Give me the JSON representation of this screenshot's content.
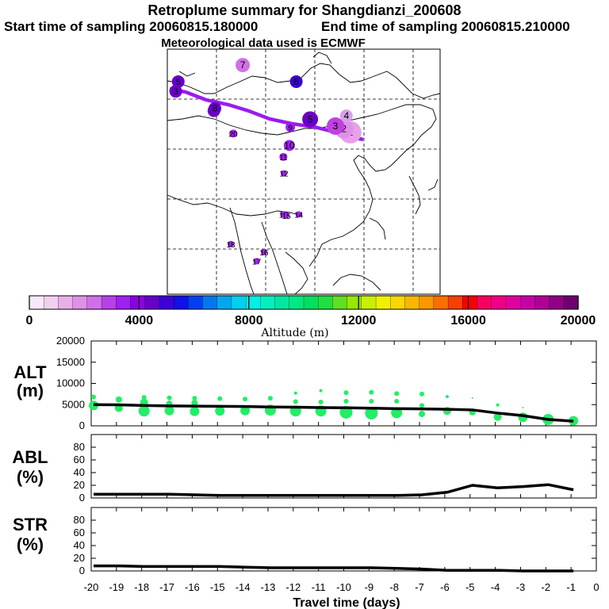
{
  "header": {
    "title": "Retroplume summary for Shangdianzi_200608",
    "start": "Start time of sampling 20060815.180000",
    "end": "End time of sampling 20060815.210000",
    "met": "Meteorological data used is ECMWF"
  },
  "colorbar": {
    "label": "Altitude  (m)",
    "ticks": [
      "0",
      "4000",
      "8000",
      "12000",
      "16000",
      "20000"
    ],
    "colors": [
      "#f8e8f8",
      "#f0d0f0",
      "#e8b0e8",
      "#e090e8",
      "#d070e8",
      "#b840e8",
      "#a020f0",
      "#8c00e0",
      "#6a00c8",
      "#3c00d8",
      "#1010e8",
      "#0040f0",
      "#0078f0",
      "#00a8f0",
      "#00d0f0",
      "#00f0e8",
      "#00f0c0",
      "#00e8a0",
      "#00e880",
      "#00e060",
      "#20e040",
      "#60e020",
      "#98e800",
      "#c8f000",
      "#f0f000",
      "#f8d800",
      "#f8b800",
      "#f89800",
      "#f87000",
      "#f84000",
      "#f80000",
      "#f80060",
      "#f00088",
      "#e000a0",
      "#c800a8",
      "#b00098",
      "#900088",
      "#700070"
    ]
  },
  "map": {
    "points": [
      {
        "label": "1",
        "lon": 116.9,
        "lat": 40.4,
        "size": 14,
        "color": "#e8a0e8"
      },
      {
        "label": "2",
        "lon": 115.6,
        "lat": 41.0,
        "size": 12,
        "color": "#e090e8"
      },
      {
        "label": "3",
        "lon": 113.9,
        "lat": 41.5,
        "size": 11,
        "color": "#c040e0"
      },
      {
        "label": "4",
        "lon": 116.1,
        "lat": 43.3,
        "size": 8,
        "color": "#d8a0e8"
      },
      {
        "label": "5",
        "lon": 108.8,
        "lat": 42.7,
        "size": 10,
        "color": "#6a00c8"
      },
      {
        "label": "6",
        "lon": 106.0,
        "lat": 49.3,
        "size": 8,
        "color": "#3c00d8"
      },
      {
        "label": "7",
        "lon": 95.2,
        "lat": 52.2,
        "size": 9,
        "color": "#d070e8"
      },
      {
        "label": "8",
        "lon": 89.6,
        "lat": 44.6,
        "size": 8,
        "color": "#6a00c8"
      },
      {
        "label": "9",
        "lon": 104.8,
        "lat": 41.3,
        "size": 6,
        "color": "#a020f0"
      },
      {
        "label": "10",
        "lon": 104.6,
        "lat": 38.1,
        "size": 7,
        "color": "#a020f0"
      },
      {
        "label": "11",
        "lon": 103.4,
        "lat": 36.1,
        "size": 5,
        "color": "#a020f0"
      },
      {
        "label": "12",
        "lon": 103.5,
        "lat": 33.2,
        "size": 4,
        "color": "#a020f0"
      },
      {
        "label": "13",
        "lon": 103.4,
        "lat": 26.0,
        "size": 4,
        "color": "#a020f0"
      },
      {
        "label": "14",
        "lon": 106.5,
        "lat": 26.0,
        "size": 4,
        "color": "#a020f0"
      },
      {
        "label": "15",
        "lon": 104.0,
        "lat": 25.8,
        "size": 4,
        "color": "#a020f0"
      },
      {
        "label": "16",
        "lon": 99.5,
        "lat": 19.4,
        "size": 4,
        "color": "#a020f0"
      },
      {
        "label": "17",
        "lon": 98.0,
        "lat": 17.8,
        "size": 4,
        "color": "#a020f0"
      },
      {
        "label": "18",
        "lon": 92.8,
        "lat": 20.8,
        "size": 4,
        "color": "#a020f0"
      },
      {
        "label": "20",
        "lon": 93.3,
        "lat": 40.2,
        "size": 5,
        "color": "#a020f0"
      }
    ],
    "fix_points": [
      {
        "label": "5",
        "lon": 82.2,
        "lat": 49.3
      },
      {
        "label": "8",
        "lon": 89.4,
        "lat": 44.2
      },
      {
        "label": "3",
        "lon": 81.7,
        "lat": 47.6
      }
    ]
  },
  "chart_data": [
    {
      "type": "scatter+line",
      "title": "ALT (m)",
      "x": [
        -20,
        -19,
        -18,
        -17,
        -16,
        -15,
        -14,
        -13,
        -12,
        -11,
        -10,
        -9,
        -8,
        -7,
        -6,
        -5,
        -4,
        -3,
        -2,
        -1
      ],
      "line": [
        5000,
        4950,
        4800,
        4700,
        4650,
        4600,
        4550,
        4450,
        4400,
        4300,
        4250,
        4150,
        4050,
        4000,
        3900,
        3750,
        3000,
        2400,
        1500,
        1100
      ],
      "xlim": [
        -20,
        0
      ],
      "ylim": [
        0,
        20000
      ],
      "yticks": [
        0,
        5000,
        10000,
        15000,
        20000
      ],
      "dots": [
        {
          "x": -20,
          "y": 4800,
          "r": 6
        },
        {
          "x": -20,
          "y": 6800,
          "r": 3
        },
        {
          "x": -19,
          "y": 4200,
          "r": 5
        },
        {
          "x": -19,
          "y": 6200,
          "r": 4
        },
        {
          "x": -18,
          "y": 3500,
          "r": 7
        },
        {
          "x": -18,
          "y": 5500,
          "r": 5
        },
        {
          "x": -18,
          "y": 6700,
          "r": 3
        },
        {
          "x": -17,
          "y": 3600,
          "r": 6
        },
        {
          "x": -17,
          "y": 5200,
          "r": 4
        },
        {
          "x": -17,
          "y": 6600,
          "r": 3
        },
        {
          "x": -16,
          "y": 3400,
          "r": 6
        },
        {
          "x": -16,
          "y": 5400,
          "r": 4
        },
        {
          "x": -16,
          "y": 6500,
          "r": 3
        },
        {
          "x": -15,
          "y": 3500,
          "r": 6
        },
        {
          "x": -15,
          "y": 6400,
          "r": 3
        },
        {
          "x": -14,
          "y": 3600,
          "r": 6
        },
        {
          "x": -14,
          "y": 6300,
          "r": 3
        },
        {
          "x": -13,
          "y": 3700,
          "r": 7
        },
        {
          "x": -13,
          "y": 6500,
          "r": 3
        },
        {
          "x": -12,
          "y": 3500,
          "r": 7
        },
        {
          "x": -12,
          "y": 5700,
          "r": 3
        },
        {
          "x": -12,
          "y": 7700,
          "r": 2
        },
        {
          "x": -11,
          "y": 3500,
          "r": 7
        },
        {
          "x": -11,
          "y": 5600,
          "r": 3
        },
        {
          "x": -11,
          "y": 8300,
          "r": 2
        },
        {
          "x": -10,
          "y": 3200,
          "r": 8
        },
        {
          "x": -10,
          "y": 5800,
          "r": 3
        },
        {
          "x": -10,
          "y": 7800,
          "r": 3
        },
        {
          "x": -9,
          "y": 3000,
          "r": 8
        },
        {
          "x": -9,
          "y": 5800,
          "r": 3
        },
        {
          "x": -9,
          "y": 7900,
          "r": 3
        },
        {
          "x": -8,
          "y": 3100,
          "r": 7
        },
        {
          "x": -8,
          "y": 5800,
          "r": 3
        },
        {
          "x": -8,
          "y": 7600,
          "r": 3
        },
        {
          "x": -7,
          "y": 2800,
          "r": 4
        },
        {
          "x": -7,
          "y": 4800,
          "r": 3
        },
        {
          "x": -7,
          "y": 7500,
          "r": 3
        },
        {
          "x": -6,
          "y": 3500,
          "r": 5
        },
        {
          "x": -6,
          "y": 6900,
          "r": 2
        },
        {
          "x": -5,
          "y": 3200,
          "r": 4
        },
        {
          "x": -5,
          "y": 6600,
          "r": 1
        },
        {
          "x": -4,
          "y": 2100,
          "r": 5
        },
        {
          "x": -4,
          "y": 4900,
          "r": 2
        },
        {
          "x": -3,
          "y": 2000,
          "r": 6
        },
        {
          "x": -3,
          "y": 4300,
          "r": 1
        },
        {
          "x": -2,
          "y": 1500,
          "r": 7
        },
        {
          "x": -1,
          "y": 1200,
          "r": 6
        }
      ]
    },
    {
      "type": "line",
      "title": "ABL (%)",
      "x": [
        -20,
        -19,
        -18,
        -17,
        -16,
        -15,
        -14,
        -13,
        -12,
        -11,
        -10,
        -9,
        -8,
        -7,
        -6,
        -5,
        -4,
        -3,
        -2,
        -1
      ],
      "values": [
        6,
        6,
        6,
        6,
        5,
        4,
        4,
        4,
        4,
        4,
        4,
        4,
        4,
        5,
        9,
        20,
        16,
        18,
        21,
        13
      ],
      "ylim": [
        0,
        100
      ],
      "yticks": [
        0,
        20,
        40,
        60,
        80
      ]
    },
    {
      "type": "line",
      "title": "STR (%)",
      "x": [
        -20,
        -19,
        -18,
        -17,
        -16,
        -15,
        -14,
        -13,
        -12,
        -11,
        -10,
        -9,
        -8,
        -7,
        -6,
        -5,
        -4,
        -3,
        -2,
        -1
      ],
      "values": [
        8,
        8,
        7,
        7,
        7,
        7,
        6,
        5,
        5,
        5,
        5,
        5,
        4,
        3,
        1,
        1,
        1,
        0,
        0,
        0
      ],
      "ylim": [
        0,
        100
      ],
      "yticks": [
        0,
        20,
        40,
        60,
        80
      ]
    }
  ],
  "xaxis": {
    "ticks": [
      "-20",
      "-19",
      "-18",
      "-17",
      "-16",
      "-15",
      "-14",
      "-13",
      "-12",
      "-11",
      "-10",
      "-9",
      "-8",
      "-7",
      "-6",
      "-5",
      "-4",
      "-3",
      "-2",
      "-1",
      "0"
    ],
    "label": "Travel time (days)"
  },
  "panel_labels": {
    "alt": {
      "top": "ALT",
      "bottom": "(m)"
    },
    "abl": {
      "top": "ABL",
      "bottom": "(%)"
    },
    "str": {
      "top": "STR",
      "bottom": "(%)"
    }
  }
}
